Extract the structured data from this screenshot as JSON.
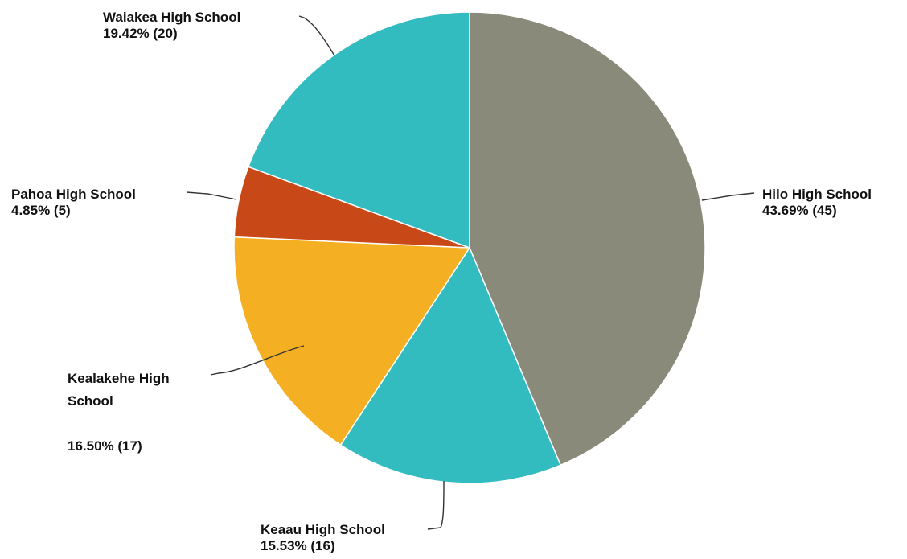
{
  "chart_data": {
    "type": "pie",
    "title": "",
    "start_angle_deg": 0,
    "direction": "clockwise",
    "slices": [
      {
        "label": "Hilo High School",
        "label_lines": [
          "Hilo High School"
        ],
        "value": 45,
        "percent_text": "43.69% (45)",
        "color": "#8A8A7A"
      },
      {
        "label": "Keaau High School",
        "label_lines": [
          "Keaau High School"
        ],
        "value": 16,
        "percent_text": "15.53% (16)",
        "color": "#33BCC0"
      },
      {
        "label": "Kealakehe High School",
        "label_lines": [
          "Kealakehe High",
          "School"
        ],
        "value": 17,
        "percent_text": "16.50% (17)",
        "color": "#F5AF22"
      },
      {
        "label": "Pahoa High School",
        "label_lines": [
          "Pahoa High School"
        ],
        "value": 5,
        "percent_text": "4.85% (5)",
        "color": "#C94818"
      },
      {
        "label": "Waiakea High School",
        "label_lines": [
          "Waiakea High School"
        ],
        "value": 20,
        "percent_text": "19.42% (20)",
        "color": "#33BCC0"
      }
    ]
  }
}
